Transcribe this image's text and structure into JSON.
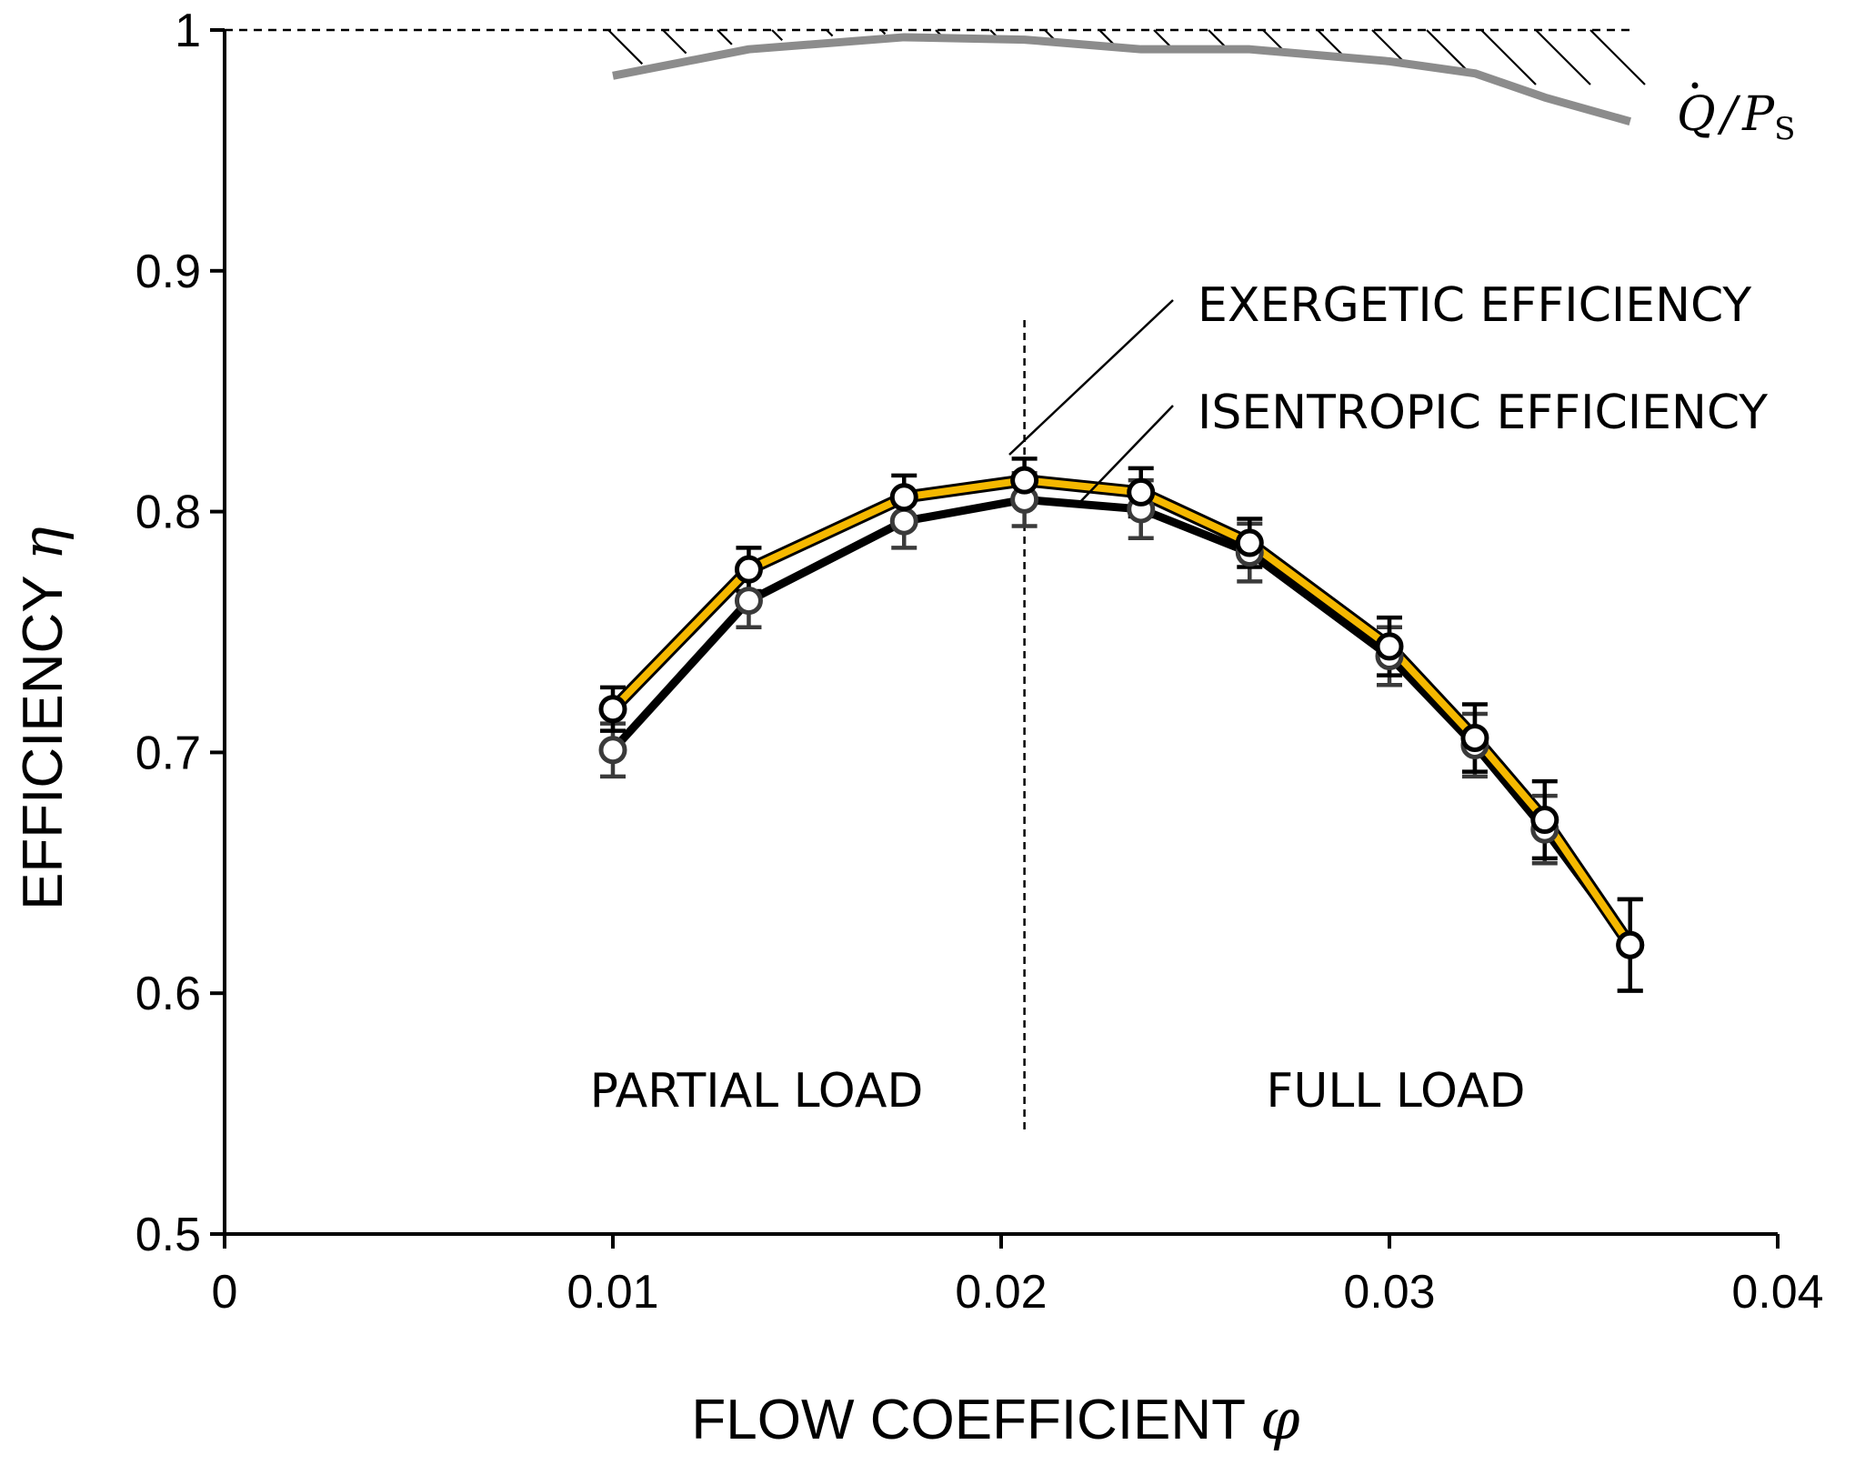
{
  "chart_data": {
    "type": "line",
    "xlabel": "FLOW COEFFICIENT",
    "xlabel_symbol": "φ",
    "ylabel": "EFFICIENCY",
    "ylabel_symbol": "η",
    "xlim": [
      0,
      0.04
    ],
    "ylim": [
      0.5,
      1.0
    ],
    "xticks": [
      "0",
      "0.01",
      "0.02",
      "0.03",
      "0.04"
    ],
    "yticks": [
      "0.5",
      "0.6",
      "0.7",
      "0.8",
      "0.9",
      "1"
    ],
    "grid": false,
    "reference_line_y": 1.0,
    "divider_x": 0.0206,
    "region_labels": [
      "PARTIAL LOAD",
      "FULL LOAD"
    ],
    "series": [
      {
        "name": "EXERGETIC EFFICIENCY",
        "color": "#F5B800",
        "marker_color": "#000000",
        "x": [
          0.01,
          0.0135,
          0.0175,
          0.0206,
          0.0236,
          0.0264,
          0.03,
          0.0322,
          0.034,
          0.0362
        ],
        "y": [
          0.718,
          0.776,
          0.806,
          0.813,
          0.808,
          0.787,
          0.744,
          0.706,
          0.672,
          0.62
        ],
        "err": [
          0.009,
          0.009,
          0.009,
          0.009,
          0.01,
          0.01,
          0.012,
          0.014,
          0.016,
          0.019
        ]
      },
      {
        "name": "ISENTROPIC EFFICIENCY",
        "color": "#000000",
        "marker_color": "#3a3a3a",
        "x": [
          0.01,
          0.0135,
          0.0175,
          0.0206,
          0.0236,
          0.0264,
          0.03,
          0.0322,
          0.034,
          0.0362
        ],
        "y": [
          0.701,
          0.763,
          0.796,
          0.805,
          0.801,
          0.783,
          0.74,
          0.703,
          0.668,
          0.62
        ],
        "err": [
          0.011,
          0.011,
          0.011,
          0.011,
          0.012,
          0.012,
          0.012,
          0.013,
          0.014,
          0.019
        ]
      },
      {
        "name": "Q/PS",
        "label_parts": [
          "Q",
          "/",
          "P",
          "S"
        ],
        "color": "#8C8C8C",
        "x": [
          0.01,
          0.0135,
          0.0175,
          0.0206,
          0.0236,
          0.0264,
          0.03,
          0.0322,
          0.034,
          0.0362
        ],
        "y": [
          0.981,
          0.992,
          0.997,
          0.996,
          0.992,
          0.992,
          0.987,
          0.982,
          0.972,
          0.962
        ]
      }
    ]
  }
}
